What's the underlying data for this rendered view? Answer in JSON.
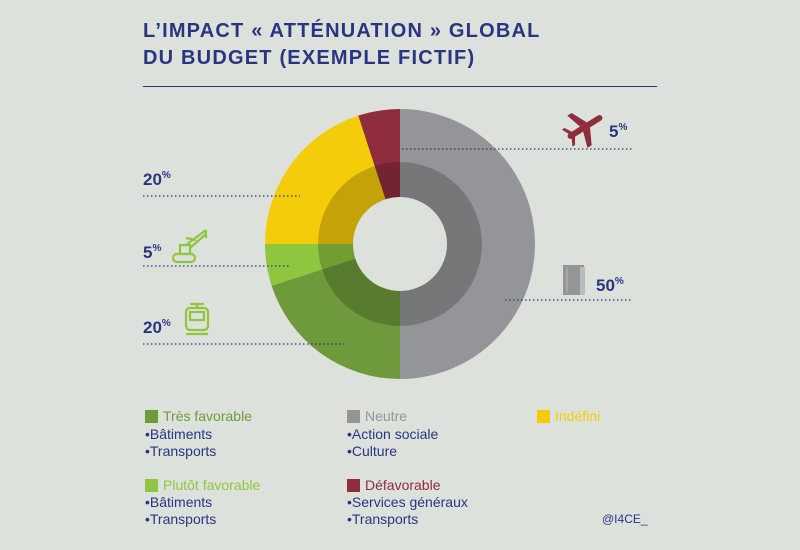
{
  "title_line1": "L’IMPACT « ATTÉNUATION » GLOBAL",
  "title_line2": "DU BUDGET (EXEMPLE FICTIF)",
  "credit": "@I4CE_",
  "colors": {
    "tres_favorable": "#6e9a3b",
    "plutot_favorable": "#8ec63f",
    "neutre": "#939598",
    "indefini": "#f5cc0a",
    "defavorable": "#8f2d3c",
    "navy": "#2a3582"
  },
  "icons": [
    "airplane-icon",
    "crane-icon",
    "tram-icon",
    "book-icon"
  ],
  "chart_data": {
    "type": "pie",
    "variant": "donut",
    "unit": "%",
    "slices": [
      {
        "category": "Neutre",
        "value": 50,
        "label": "50",
        "color": "#939598"
      },
      {
        "category": "Très favorable",
        "value": 20,
        "label": "20",
        "color": "#6e9a3b"
      },
      {
        "category": "Plutôt favorable",
        "value": 5,
        "label": "5",
        "color": "#8ec63f"
      },
      {
        "category": "Indéfini",
        "value": 20,
        "label": "20",
        "color": "#f5cc0a"
      },
      {
        "category": "Défavorable",
        "value": 5,
        "label": "5",
        "color": "#8f2d3c"
      }
    ]
  },
  "legend": {
    "tres_favorable": {
      "label": "Très favorable",
      "items": [
        "•Bâtiments",
        "•Transports"
      ]
    },
    "neutre": {
      "label": "Neutre",
      "items": [
        "•Action sociale",
        "•Culture"
      ]
    },
    "indefini": {
      "label": "Indéfini"
    },
    "plutot_favorable": {
      "label": "Plutôt favorable",
      "items": [
        "•Bâtiments",
        "•Transports"
      ]
    },
    "defavorable": {
      "label": "Défavorable",
      "items": [
        "•Services généraux",
        "•Transports"
      ]
    }
  }
}
